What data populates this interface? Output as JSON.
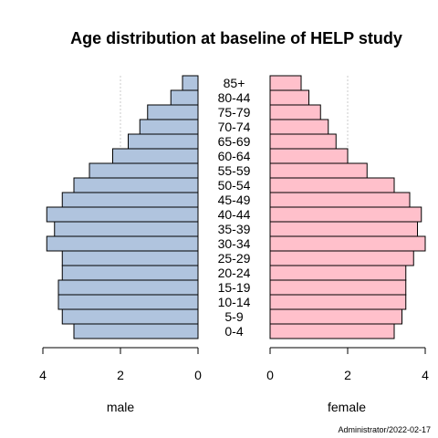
{
  "chart_data": {
    "type": "bar",
    "title": "Age distribution at baseline of HELP study",
    "categories": [
      "0-4",
      "5-9",
      "10-14",
      "15-19",
      "20-24",
      "25-29",
      "30-34",
      "35-39",
      "40-44",
      "45-49",
      "50-54",
      "55-59",
      "60-64",
      "65-69",
      "70-74",
      "75-79",
      "80-44",
      "85+"
    ],
    "series": [
      {
        "name": "male",
        "color": "#b0c4de",
        "values": [
          3.2,
          3.5,
          3.6,
          3.6,
          3.5,
          3.5,
          3.9,
          3.7,
          3.9,
          3.5,
          3.2,
          2.8,
          2.2,
          1.8,
          1.5,
          1.3,
          0.7,
          0.4
        ]
      },
      {
        "name": "female",
        "color": "#ffc0cb",
        "values": [
          3.2,
          3.4,
          3.5,
          3.5,
          3.5,
          3.7,
          4.0,
          3.8,
          3.9,
          3.6,
          3.2,
          2.5,
          2.0,
          1.7,
          1.5,
          1.3,
          1.0,
          0.8
        ]
      }
    ],
    "xlabel_left": "male",
    "xlabel_right": "female",
    "xlim": [
      0,
      4
    ],
    "ticks_left": [
      "4",
      "2",
      "0"
    ],
    "ticks_right": [
      "0",
      "2",
      "4"
    ],
    "gridline_at": 2,
    "credit": "Administrator/2022-02-17"
  }
}
